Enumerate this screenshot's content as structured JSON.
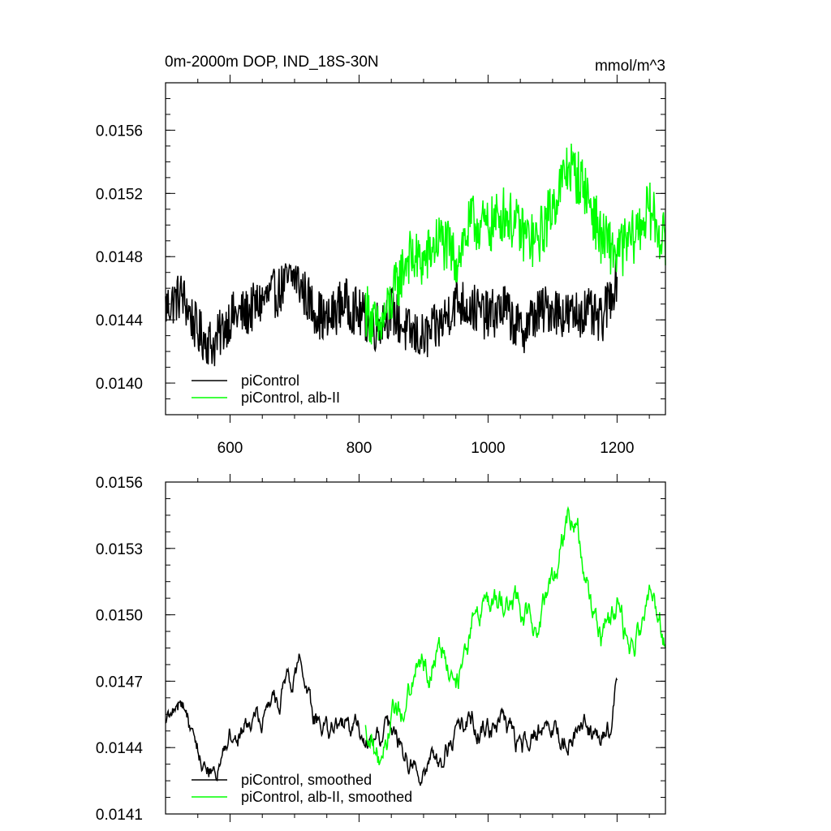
{
  "chart_data": [
    {
      "type": "line",
      "title": "0m-2000m DOP, IND_18S-30N",
      "units": "mmol/m^3",
      "xlim": [
        500,
        1275
      ],
      "ylim": [
        0.0138,
        0.0159
      ],
      "xticks": [
        600,
        800,
        1000,
        1200
      ],
      "xtick_labels": [
        "600",
        "800",
        "1000",
        "1200"
      ],
      "yticks": [
        0.014,
        0.0144,
        0.0148,
        0.0152,
        0.0156
      ],
      "ytick_labels": [
        "0.0140",
        "0.0144",
        "0.0148",
        "0.0152",
        "0.0156"
      ],
      "legend": "bottom-left",
      "series": [
        {
          "name": "piControl",
          "color": "#000000",
          "x": [
            500,
            525,
            550,
            575,
            600,
            625,
            650,
            675,
            700,
            725,
            750,
            775,
            800,
            825,
            850,
            875,
            900,
            925,
            950,
            975,
            1000,
            1025,
            1050,
            1075,
            1100,
            1125,
            1150,
            1175,
            1200
          ],
          "values": [
            0.01448,
            0.01456,
            0.01432,
            0.01424,
            0.01442,
            0.01444,
            0.01452,
            0.01458,
            0.01468,
            0.0145,
            0.01438,
            0.01452,
            0.01444,
            0.01436,
            0.01446,
            0.01432,
            0.01428,
            0.01436,
            0.01452,
            0.01448,
            0.01442,
            0.01448,
            0.01432,
            0.01444,
            0.01448,
            0.01442,
            0.01446,
            0.01438,
            0.01468
          ],
          "amplitude": 0.00016
        },
        {
          "name": "piControl, alb-II",
          "color": "#00ff00",
          "x": [
            810,
            830,
            850,
            875,
            900,
            925,
            950,
            975,
            1000,
            1025,
            1050,
            1075,
            1100,
            1125,
            1150,
            1175,
            1200,
            1225,
            1250,
            1275
          ],
          "values": [
            0.01448,
            0.01432,
            0.01452,
            0.0148,
            0.01476,
            0.01492,
            0.01478,
            0.01502,
            0.01498,
            0.01508,
            0.01496,
            0.01488,
            0.01512,
            0.01538,
            0.01524,
            0.01492,
            0.01482,
            0.01492,
            0.0151,
            0.01488
          ],
          "amplitude": 0.00018
        }
      ]
    },
    {
      "type": "line",
      "xlim": [
        500,
        1275
      ],
      "ylim": [
        0.0141,
        0.0156
      ],
      "xticks": [
        600,
        800,
        1000,
        1200
      ],
      "yticks": [
        0.0141,
        0.0144,
        0.0147,
        0.015,
        0.0153,
        0.0156
      ],
      "ytick_labels": [
        "0.0141",
        "0.0144",
        "0.0147",
        "0.0150",
        "0.0153",
        "0.0156"
      ],
      "legend": "bottom-left",
      "series": [
        {
          "name": "piControl, smoothed",
          "color": "#000000",
          "x": [
            500,
            525,
            550,
            575,
            600,
            625,
            650,
            675,
            700,
            710,
            725,
            750,
            775,
            800,
            825,
            850,
            875,
            900,
            925,
            950,
            975,
            1000,
            1025,
            1050,
            1075,
            1100,
            1125,
            1150,
            1175,
            1190,
            1200
          ],
          "values": [
            0.01448,
            0.01462,
            0.01438,
            0.01428,
            0.01444,
            0.01448,
            0.01454,
            0.0146,
            0.01472,
            0.01478,
            0.01458,
            0.01446,
            0.01452,
            0.01448,
            0.01444,
            0.01448,
            0.01436,
            0.0143,
            0.01434,
            0.01448,
            0.01452,
            0.01446,
            0.0145,
            0.0144,
            0.01446,
            0.0145,
            0.01446,
            0.0145,
            0.01442,
            0.01446,
            0.01472
          ],
          "amplitude": 8e-05
        },
        {
          "name": "piControl, alb-II, smoothed",
          "color": "#00ff00",
          "x": [
            810,
            830,
            850,
            870,
            890,
            910,
            930,
            950,
            975,
            1000,
            1025,
            1050,
            1075,
            1100,
            1115,
            1125,
            1140,
            1160,
            1175,
            1200,
            1225,
            1250,
            1275
          ],
          "values": [
            0.01446,
            0.01432,
            0.01452,
            0.0146,
            0.0148,
            0.01476,
            0.01486,
            0.01464,
            0.01492,
            0.01506,
            0.01508,
            0.01502,
            0.01496,
            0.01512,
            0.01532,
            0.01548,
            0.01538,
            0.01502,
            0.01488,
            0.015,
            0.01482,
            0.01516,
            0.01488
          ],
          "amplitude": 0.0001
        }
      ]
    }
  ]
}
